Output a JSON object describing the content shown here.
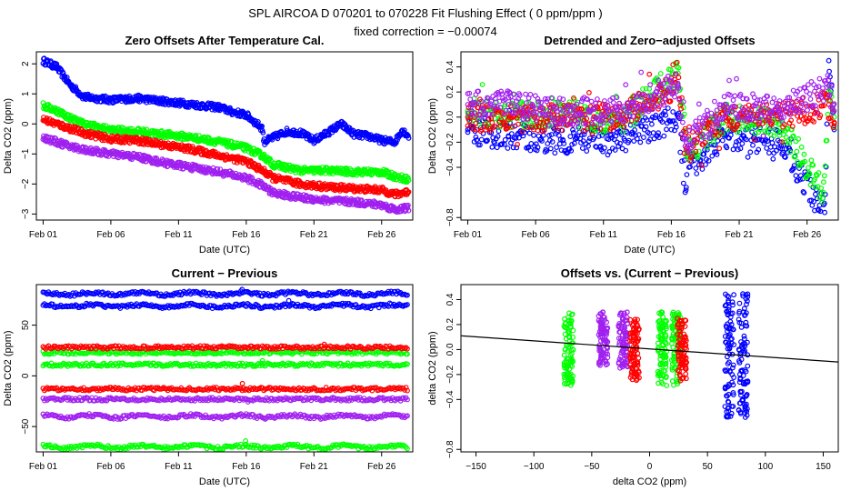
{
  "header": {
    "title": "SPL   AIRCOA D   070201 to 070228   Fit Flushing Effect ( 0 ppm/ppm )",
    "subtitle": "fixed correction = −0.00074"
  },
  "colors": {
    "blue": "#0000ff",
    "green": "#00ff00",
    "red": "#ff0000",
    "purple": "#a020f0",
    "axis": "#000000",
    "background": "#ffffff"
  },
  "chart_data": [
    {
      "id": "p1",
      "type": "scatter",
      "title": "Zero Offsets After Temperature Cal.",
      "xlabel": "Date (UTC)",
      "ylabel": "Delta CO2 (ppm)",
      "xlim": [
        0.5,
        28.3
      ],
      "ylim": [
        -3.2,
        2.4
      ],
      "xticks": [
        1,
        6,
        11,
        16,
        21,
        26
      ],
      "xtick_labels": [
        "Feb 01",
        "Feb 06",
        "Feb 11",
        "Feb 16",
        "Feb 21",
        "Feb 26"
      ],
      "yticks": [
        -3,
        -2,
        -1,
        0,
        1,
        2
      ],
      "ytick_labels": [
        "−3",
        "−2",
        "−1",
        "0",
        "1",
        "2"
      ],
      "series": [
        {
          "name": "blue",
          "color": "#0000ff",
          "x": [
            1,
            2,
            3,
            4,
            6,
            8,
            10,
            12,
            14,
            15,
            16,
            17.2,
            17.3,
            19,
            20,
            21,
            22,
            23,
            24,
            25,
            26,
            27,
            27.5,
            28
          ],
          "y": [
            2.1,
            1.9,
            1.3,
            0.9,
            0.8,
            0.85,
            0.75,
            0.65,
            0.55,
            0.4,
            0.3,
            -0.15,
            -0.6,
            -0.25,
            -0.3,
            -0.55,
            -0.3,
            0.0,
            -0.35,
            -0.4,
            -0.55,
            -0.6,
            -0.2,
            -0.4
          ]
        },
        {
          "name": "green",
          "color": "#00ff00",
          "x": [
            1,
            2,
            3,
            4,
            6,
            8,
            10,
            12,
            14,
            16,
            17.2,
            18,
            20,
            22,
            24,
            26,
            27,
            28
          ],
          "y": [
            0.6,
            0.45,
            0.2,
            0.0,
            -0.2,
            -0.25,
            -0.35,
            -0.45,
            -0.6,
            -0.8,
            -1.05,
            -1.35,
            -1.55,
            -1.55,
            -1.6,
            -1.6,
            -1.75,
            -1.85
          ]
        },
        {
          "name": "red",
          "color": "#ff0000",
          "x": [
            1,
            2,
            3,
            4,
            6,
            8,
            10,
            12,
            14,
            16,
            17.2,
            18,
            20,
            22,
            24,
            26,
            27,
            28
          ],
          "y": [
            0.15,
            0.0,
            -0.15,
            -0.3,
            -0.5,
            -0.55,
            -0.7,
            -0.85,
            -1.05,
            -1.25,
            -1.55,
            -1.8,
            -2.0,
            -2.1,
            -2.15,
            -2.2,
            -2.35,
            -2.25
          ]
        },
        {
          "name": "purple",
          "color": "#a020f0",
          "x": [
            1,
            2,
            3,
            4,
            6,
            8,
            10,
            12,
            14,
            16,
            17.2,
            18,
            20,
            22,
            24,
            26,
            27,
            28
          ],
          "y": [
            -0.45,
            -0.6,
            -0.75,
            -0.85,
            -1.0,
            -1.1,
            -1.3,
            -1.45,
            -1.6,
            -1.8,
            -2.05,
            -2.3,
            -2.45,
            -2.55,
            -2.6,
            -2.7,
            -2.85,
            -2.8
          ]
        }
      ]
    },
    {
      "id": "p2",
      "type": "scatter",
      "title": "Detrended and Zero−adjusted Offsets",
      "xlabel": "Date (UTC)",
      "ylabel": "Delta CO2 (ppm)",
      "xlim": [
        0.5,
        28.3
      ],
      "ylim": [
        -0.82,
        0.52
      ],
      "xticks": [
        1,
        6,
        11,
        16,
        21,
        26
      ],
      "xtick_labels": [
        "Feb 01",
        "Feb 06",
        "Feb 11",
        "Feb 16",
        "Feb 21",
        "Feb 26"
      ],
      "yticks": [
        -0.8,
        -0.4,
        -0.2,
        0.0,
        0.2,
        0.4
      ],
      "ytick_labels": [
        "−0.8",
        "−0.4",
        "−0.2",
        "0.0",
        "0.2",
        "0.4"
      ],
      "series": [
        {
          "name": "blue",
          "color": "#0000ff",
          "x": [
            1,
            4,
            8,
            12,
            16.5,
            17.1,
            17.3,
            20,
            24,
            27.3,
            27.6,
            28
          ],
          "y": [
            -0.1,
            -0.15,
            -0.18,
            -0.2,
            0.0,
            -0.56,
            -0.4,
            -0.15,
            -0.2,
            -0.76,
            0.45,
            -0.1
          ]
        },
        {
          "name": "green",
          "color": "#00ff00",
          "x": [
            1,
            4,
            8,
            12,
            16.5,
            17.1,
            20,
            24,
            27.2,
            27.6,
            28
          ],
          "y": [
            0.05,
            0.0,
            0.05,
            -0.05,
            0.35,
            -0.3,
            0.0,
            -0.05,
            -0.6,
            0.2,
            0.0
          ]
        },
        {
          "name": "red",
          "color": "#ff0000",
          "x": [
            1,
            4,
            8,
            12,
            16.5,
            17.1,
            20,
            24,
            27.6,
            28
          ],
          "y": [
            0.0,
            -0.02,
            0.0,
            0.0,
            0.25,
            -0.25,
            0.0,
            0.0,
            0.1,
            -0.05
          ]
        },
        {
          "name": "purple",
          "color": "#a020f0",
          "x": [
            1,
            4,
            8,
            12,
            16.5,
            17.1,
            20,
            24,
            27.6,
            28
          ],
          "y": [
            0.1,
            0.1,
            0.05,
            0.05,
            0.25,
            -0.2,
            0.1,
            0.05,
            0.25,
            0.05
          ]
        }
      ]
    },
    {
      "id": "p3",
      "type": "scatter",
      "title": "Current − Previous",
      "xlabel": "Date (UTC)",
      "ylabel": "Delta CO2 (ppm)",
      "xlim": [
        0.5,
        28.3
      ],
      "ylim": [
        -75,
        90
      ],
      "xticks": [
        1,
        6,
        11,
        16,
        21,
        26
      ],
      "xtick_labels": [
        "Feb 01",
        "Feb 06",
        "Feb 11",
        "Feb 16",
        "Feb 21",
        "Feb 26"
      ],
      "yticks": [
        -50,
        0,
        50
      ],
      "ytick_labels": [
        "−50",
        "0",
        "50"
      ],
      "series": [
        {
          "name": "blue",
          "color": "#0000ff",
          "levels": [
            81,
            69
          ]
        },
        {
          "name": "green",
          "color": "#00ff00",
          "levels": [
            23,
            11,
            -70
          ]
        },
        {
          "name": "red",
          "color": "#ff0000",
          "levels": [
            28,
            -13
          ]
        },
        {
          "name": "purple",
          "color": "#a020f0",
          "levels": [
            -23,
            -40
          ]
        }
      ]
    },
    {
      "id": "p4",
      "type": "scatter",
      "title": "Offsets vs. (Current − Previous)",
      "xlabel": "delta CO2 (ppm)",
      "ylabel": "delta CO2 (ppm)",
      "xlim": [
        -163,
        163
      ],
      "ylim": [
        -0.82,
        0.52
      ],
      "xticks": [
        -150,
        -100,
        -50,
        0,
        50,
        100,
        150
      ],
      "xtick_labels": [
        "−150",
        "−100",
        "−50",
        "0",
        "50",
        "100",
        "150"
      ],
      "yticks": [
        -0.8,
        -0.4,
        -0.2,
        0.0,
        0.2,
        0.4
      ],
      "ytick_labels": [
        "−0.8",
        "−0.4",
        "−0.2",
        "0.0",
        "0.2",
        "0.4"
      ],
      "fit_line": {
        "x": [
          -163,
          163
        ],
        "y": [
          0.11,
          -0.1
        ]
      },
      "series": [
        {
          "name": "green",
          "color": "#00ff00",
          "x_centers": [
            -70,
            11,
            23
          ],
          "y_range": [
            -0.3,
            0.3
          ]
        },
        {
          "name": "purple",
          "color": "#a020f0",
          "x_centers": [
            -40,
            -23
          ],
          "y_range": [
            -0.15,
            0.3
          ]
        },
        {
          "name": "red",
          "color": "#ff0000",
          "x_centers": [
            -13,
            28
          ],
          "y_range": [
            -0.25,
            0.25
          ]
        },
        {
          "name": "blue",
          "color": "#0000ff",
          "x_centers": [
            69,
            81
          ],
          "y_range": [
            -0.55,
            0.45
          ]
        }
      ]
    }
  ]
}
